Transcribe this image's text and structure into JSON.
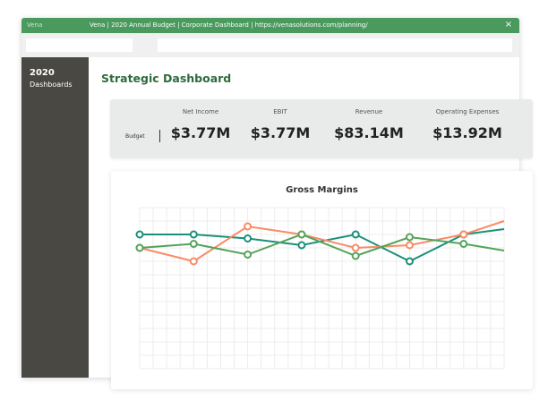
{
  "window": {
    "app_name": "Vena",
    "title": "Vena | 2020 Annual Budget | Corporate Dashboard | https://venasolutions.com/planning/",
    "close_icon": "×"
  },
  "sidebar": {
    "year": "2020",
    "label": "Dashboards"
  },
  "page": {
    "title": "Strategic Dashboard"
  },
  "kpis": {
    "row_label": "Budget",
    "items": [
      {
        "label": "Net Income",
        "value": "$3.77M"
      },
      {
        "label": "EBIT",
        "value": "$3.77M"
      },
      {
        "label": "Revenue",
        "value": "$83.14M"
      },
      {
        "label": "Operating Expenses",
        "value": "$13.92M"
      }
    ]
  },
  "chart_data": {
    "type": "line",
    "title": "Gross Margins",
    "x": [
      0,
      1,
      2,
      3,
      4,
      5,
      6,
      6.75
    ],
    "ylim": [
      0,
      12
    ],
    "grid": true,
    "series": [
      {
        "color": "#1a9079",
        "values": [
          10,
          10,
          9.7,
          9.2,
          10,
          8,
          10,
          10.4
        ]
      },
      {
        "color": "#f98b66",
        "values": [
          9,
          8,
          10.6,
          10,
          9,
          9.2,
          10,
          11
        ]
      },
      {
        "color": "#54a35a",
        "values": [
          9,
          9.3,
          8.5,
          10,
          8.4,
          9.8,
          9.3,
          8.8
        ]
      }
    ]
  }
}
